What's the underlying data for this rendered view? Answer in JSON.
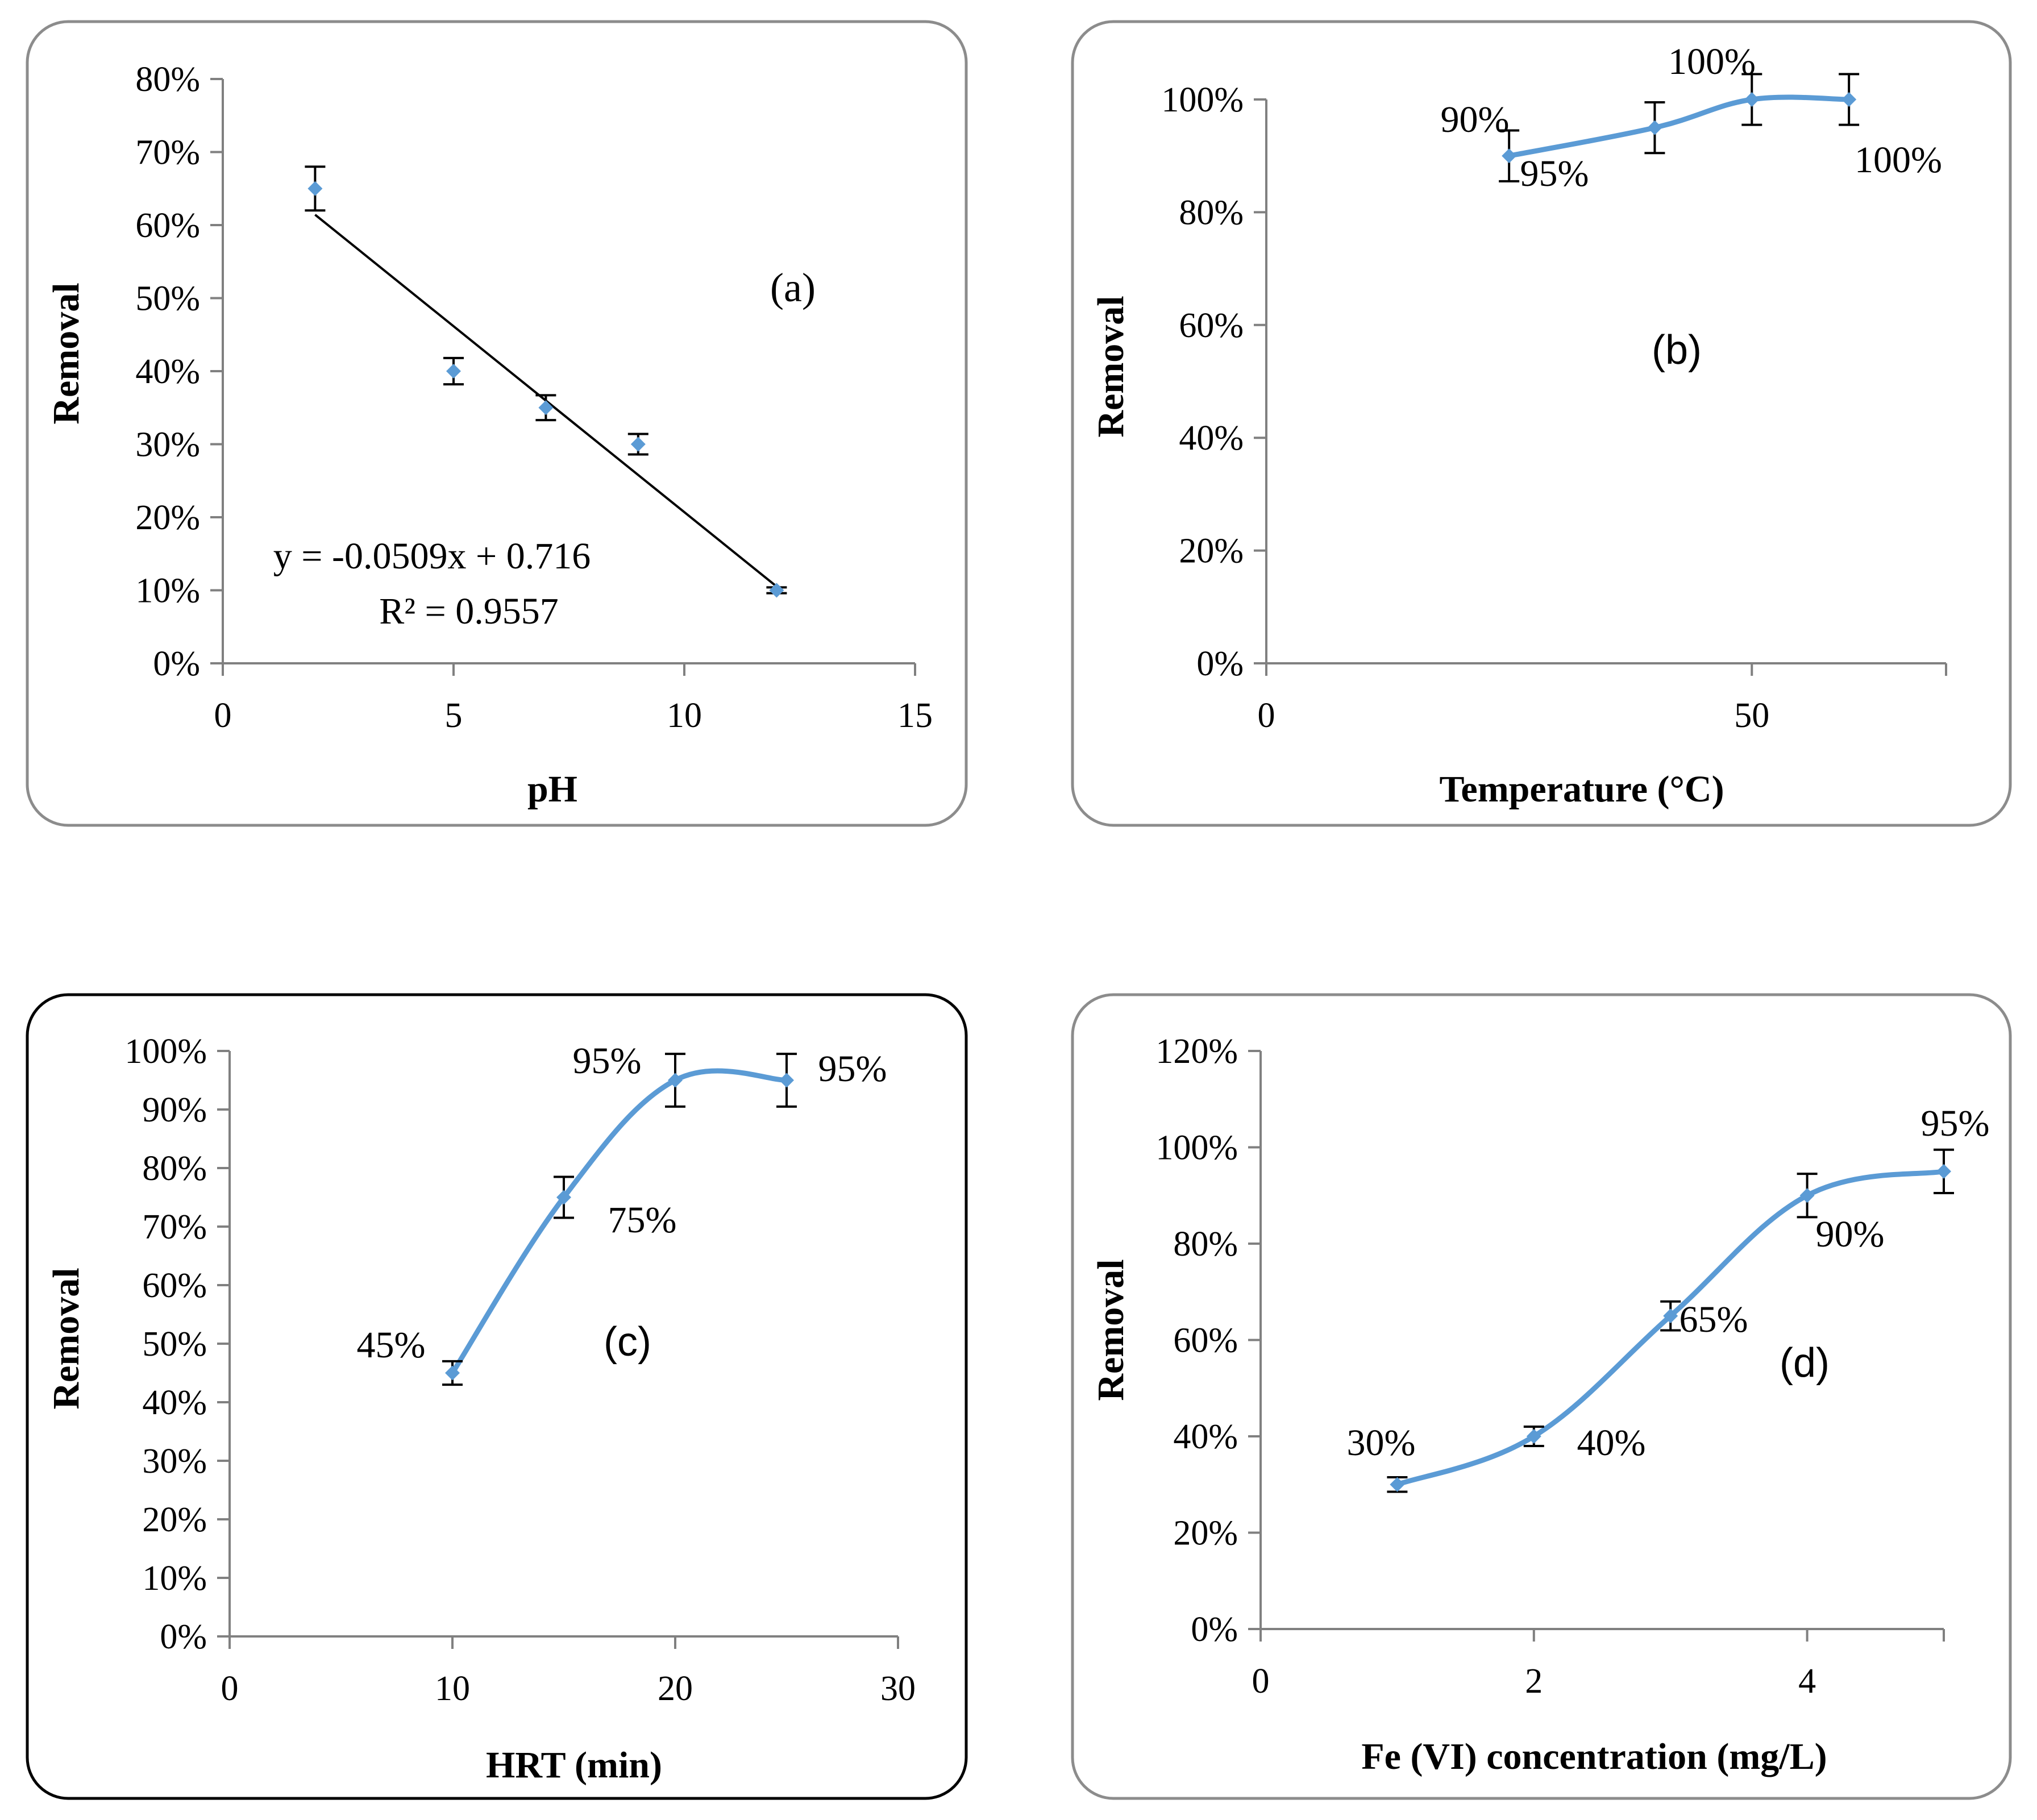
{
  "colors": {
    "series": "#5B9BD5",
    "frame": "#8c8c8c",
    "axis": "#808080",
    "text": "#000000"
  },
  "chart_data": [
    {
      "panel_label": "(a)",
      "type": "scatter",
      "xlabel": "pH",
      "ylabel": "Removal",
      "xlim": [
        0,
        15
      ],
      "x_ticks": [
        "0",
        "5",
        "10",
        "15"
      ],
      "ylim": [
        0,
        0.8
      ],
      "y_ticks": [
        "0%",
        "10%",
        "20%",
        "30%",
        "40%",
        "50%",
        "60%",
        "70%",
        "80%"
      ],
      "x": [
        2,
        5,
        7,
        9,
        12
      ],
      "y": [
        0.65,
        0.4,
        0.35,
        0.3,
        0.1
      ],
      "error": [
        0.03,
        0.018,
        0.017,
        0.014,
        0.004
      ],
      "trendline": {
        "slope": -0.0509,
        "intercept": 0.716,
        "x_range": [
          2,
          12
        ]
      },
      "annotations": [
        "y = -0.0509x + 0.716",
        "R² = 0.9557"
      ]
    },
    {
      "panel_label": "(b)",
      "type": "line",
      "xlabel": "Temperature (°C)",
      "ylabel": "Removal",
      "xlim": [
        0,
        70
      ],
      "x_ticks": [
        "0",
        "50"
      ],
      "ylim": [
        0,
        1.0
      ],
      "y_ticks": [
        "0%",
        "20%",
        "40%",
        "60%",
        "80%",
        "100%"
      ],
      "x": [
        25,
        40,
        50,
        60
      ],
      "y": [
        0.9,
        0.95,
        1.0,
        1.0
      ],
      "error": [
        0.045,
        0.045,
        0.045,
        0.045
      ],
      "data_labels": [
        "90%",
        "95%",
        "100%",
        "100%"
      ]
    },
    {
      "panel_label": "(c)",
      "type": "line",
      "xlabel": "HRT (min)",
      "ylabel": "Removal",
      "xlim": [
        0,
        30
      ],
      "x_ticks": [
        "0",
        "10",
        "20",
        "30"
      ],
      "ylim": [
        0,
        1.0
      ],
      "y_ticks": [
        "0%",
        "10%",
        "20%",
        "30%",
        "40%",
        "50%",
        "60%",
        "70%",
        "80%",
        "90%",
        "100%"
      ],
      "x": [
        10,
        15,
        20,
        25
      ],
      "y": [
        0.45,
        0.75,
        0.95,
        0.95
      ],
      "error": [
        0.02,
        0.035,
        0.045,
        0.045
      ],
      "data_labels": [
        "45%",
        "75%",
        "95%",
        "95%"
      ]
    },
    {
      "panel_label": "(d)",
      "type": "line",
      "xlabel": "Fe (VI) concentration (mg/L)",
      "ylabel": "Removal",
      "xlim": [
        0,
        5
      ],
      "x_ticks": [
        "0",
        "2",
        "4"
      ],
      "ylim": [
        0,
        1.2
      ],
      "y_ticks": [
        "0%",
        "20%",
        "40%",
        "60%",
        "80%",
        "100%",
        "120%"
      ],
      "x": [
        1,
        2,
        3,
        4,
        5
      ],
      "y": [
        0.3,
        0.4,
        0.65,
        0.9,
        0.95
      ],
      "error": [
        0.015,
        0.02,
        0.03,
        0.045,
        0.045
      ],
      "data_labels": [
        "30%",
        "40%",
        "65%",
        "90%",
        "95%"
      ]
    }
  ]
}
